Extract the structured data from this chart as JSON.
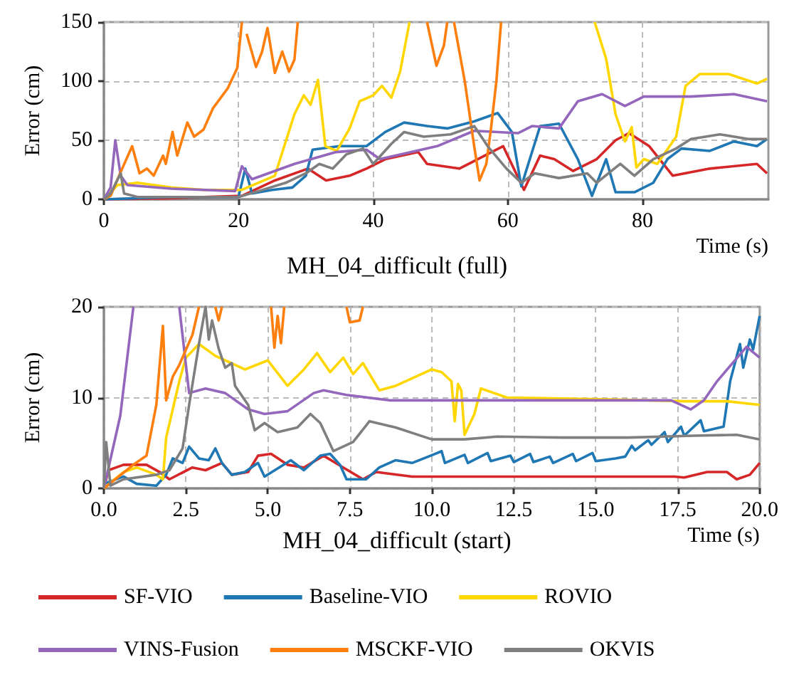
{
  "chart_data": [
    {
      "type": "line",
      "title": "MH_04_difficult (full)",
      "xlabel": "Time (s)",
      "ylabel": "Error (cm)",
      "xlim": [
        0,
        98.7
      ],
      "ylim": [
        0,
        150
      ],
      "xticks": [
        0,
        20,
        40,
        60,
        80
      ],
      "yticks": [
        0,
        50,
        100,
        150
      ],
      "grid": true,
      "legend": false,
      "marker": "none",
      "series": [
        {
          "color": "#d62728",
          "x": [
            0,
            10,
            20.5,
            25.4,
            30.3,
            33,
            36.5,
            39,
            41.8,
            46.7,
            48,
            52.8,
            59.3,
            62.4,
            64.8,
            66.9,
            69.7,
            73.2,
            76,
            78,
            81,
            84.5,
            90,
            97,
            98.5
          ],
          "values": [
            0,
            1,
            3,
            16,
            26,
            16,
            20,
            26,
            34,
            40,
            30,
            26,
            45,
            8,
            37,
            34,
            24,
            34,
            50,
            56,
            45,
            20,
            26,
            30,
            22
          ]
        },
        {
          "color": "#1f77b4",
          "x": [
            0,
            10,
            20,
            21,
            22,
            25,
            28,
            30,
            31,
            35,
            39,
            41.8,
            44.6,
            48,
            51,
            55,
            58.5,
            60.6,
            62,
            64.8,
            67.6,
            70.4,
            72.5,
            74.6,
            76,
            78.8,
            81.6,
            83.7,
            85.8,
            90,
            93.6,
            97,
            98.5
          ],
          "values": [
            0,
            2,
            2,
            26,
            5,
            8,
            10,
            20,
            42,
            45,
            45,
            57,
            65,
            62,
            60,
            66,
            73,
            57,
            11,
            62,
            64,
            34,
            3,
            34,
            6,
            6,
            14,
            34,
            43,
            41,
            49,
            45,
            51
          ]
        },
        {
          "color": "#ffd700",
          "x": [
            0,
            2,
            5,
            10,
            15,
            20.5,
            25.4,
            28.3,
            29.7,
            30.7,
            31.8,
            32.9,
            34.6,
            36.5,
            38,
            40,
            41.3,
            42.7,
            44,
            45.4,
            46,
            72.9,
            74.6,
            76,
            77.4,
            78.4,
            79.1,
            80.2,
            82.2,
            85,
            86.4,
            88.5,
            92.8,
            97,
            98.5
          ],
          "values": [
            0,
            12,
            14,
            10,
            8,
            8,
            20,
            72,
            88,
            80,
            101,
            45,
            41,
            60,
            83,
            88,
            96,
            86,
            108,
            150,
            null,
            150,
            119,
            72,
            49,
            61,
            27,
            34,
            30,
            53,
            96,
            106,
            106,
            98,
            102
          ]
        },
        {
          "color": "#9467bd",
          "x": [
            0,
            1,
            1.7,
            2.5,
            3.5,
            10,
            19.5,
            20.5,
            22,
            28.3,
            34.5,
            39,
            41,
            49.5,
            55,
            61.5,
            63.6,
            67.6,
            70.4,
            74,
            77.4,
            80.2,
            87.2,
            93.6,
            98.5
          ],
          "values": [
            0,
            10,
            50,
            20,
            12,
            9,
            7,
            28,
            17,
            30,
            40,
            42,
            34,
            45,
            58,
            56,
            62,
            60,
            83,
            89,
            79,
            87,
            87,
            89,
            83
          ]
        },
        {
          "color": "#ff7f0e",
          "x": [
            0,
            1,
            2.1,
            4.2,
            5.3,
            6.4,
            7.4,
            8.8,
            9.2,
            10.2,
            10.9,
            12.4,
            13.4,
            14.8,
            16.2,
            18.4,
            19.8,
            20.5,
            20.9,
            21.2,
            22.6,
            23.5,
            24.3,
            25.4,
            26.5,
            27.5,
            28.3,
            28.8,
            29,
            48,
            49.4,
            50.5,
            51,
            51.5,
            52,
            53.6,
            55,
            55.8,
            56.8,
            57.5,
            58.3,
            59
          ],
          "values": [
            0,
            3,
            18,
            45,
            22,
            26,
            20,
            37,
            30,
            57,
            37,
            65,
            53,
            59,
            77,
            94,
            111,
            150,
            null,
            140,
            112,
            125,
            145,
            107,
            125,
            108,
            118,
            150,
            null,
            150,
            113,
            130,
            150,
            null,
            150,
            100,
            45,
            16,
            30,
            60,
            100,
            150
          ]
        },
        {
          "color": "#7f7f7f",
          "x": [
            0,
            1,
            2.5,
            3,
            5,
            20,
            23,
            27,
            30,
            32,
            34,
            36,
            38.5,
            40,
            42.7,
            44.6,
            47.5,
            51.5,
            55,
            57,
            59.8,
            62,
            64,
            67.6,
            71.8,
            73.2,
            76.7,
            78.8,
            81.6,
            85,
            87.2,
            91.5,
            95.7,
            98.5
          ],
          "values": [
            0,
            5,
            22,
            5,
            2,
            2,
            7,
            14,
            22,
            30,
            26,
            38,
            43,
            30,
            47,
            57,
            53,
            55,
            62,
            45,
            26,
            14,
            22,
            18,
            22,
            14,
            30,
            20,
            34,
            43,
            51,
            55,
            51,
            51
          ]
        }
      ]
    },
    {
      "type": "line",
      "title": "MH_04_difficult (start)",
      "xlabel": "Time (s)",
      "ylabel": "Error (cm)",
      "xlim": [
        0,
        20
      ],
      "ylim": [
        0,
        20
      ],
      "xticks": [
        {
          "value": 0,
          "label": "0.0"
        },
        {
          "value": 2.5,
          "label": "2.5"
        },
        {
          "value": 5,
          "label": "5.0"
        },
        {
          "value": 7.5,
          "label": "7.5"
        },
        {
          "value": 10,
          "label": "10.0"
        },
        {
          "value": 12.5,
          "label": "12.5"
        },
        {
          "value": 15,
          "label": "15.0"
        },
        {
          "value": 17.5,
          "label": "17.5"
        },
        {
          "value": 20,
          "label": "20.0"
        }
      ],
      "yticks": [
        0,
        10,
        20
      ],
      "grid": true,
      "legend": "bottom",
      "marker": "none",
      "series": [
        {
          "name": "SF-VIO",
          "color": "#d62728",
          "x": [
            0,
            0.14,
            0.6,
            1.3,
            1.7,
            2,
            2.7,
            3.1,
            3.6,
            3.9,
            4.4,
            4.7,
            5.1,
            5.6,
            6.1,
            6.7,
            7.3,
            7.9,
            8.3,
            9.4,
            10.1,
            17.4,
            17.7,
            18.4,
            19,
            19.3,
            19.7,
            20
          ],
          "values": [
            0,
            2,
            2.6,
            2.6,
            1.8,
            1,
            2.3,
            2,
            2.8,
            1.5,
            1.8,
            3.6,
            3.8,
            2.6,
            2.3,
            3.6,
            2.3,
            1,
            1.8,
            1.3,
            1.3,
            1.3,
            1.2,
            1.8,
            1.8,
            1,
            1.5,
            2.8
          ]
        },
        {
          "name": "Baseline-VIO",
          "color": "#1f77b4",
          "x": [
            0,
            0.6,
            1,
            1.6,
            1.9,
            2.1,
            2.4,
            2.6,
            2.9,
            3.2,
            3.4,
            3.6,
            3.9,
            4.3,
            4.7,
            4.9,
            5.7,
            6.1,
            6.6,
            6.9,
            7.2,
            7.4,
            8,
            8.4,
            8.9,
            9.4,
            10.1,
            10.3,
            10.4,
            11,
            11.1,
            11.7,
            11.8,
            12.4,
            12.5,
            13,
            13.1,
            13.6,
            13.7,
            14.3,
            14.4,
            14.9,
            15,
            15.6,
            15.9,
            16.1,
            16.2,
            16.6,
            16.7,
            17.1,
            17.2,
            17.6,
            17.7,
            18.2,
            18.3,
            18.9,
            19.1,
            19.4,
            19.5,
            19.7,
            19.8,
            20
          ],
          "values": [
            0.5,
            1.3,
            0.5,
            0.3,
            1.5,
            3.3,
            2.8,
            4.6,
            3.3,
            3.1,
            4.4,
            2.8,
            1.5,
            1.8,
            2.8,
            1.3,
            3.1,
            2,
            3.6,
            3.8,
            2.6,
            1,
            1,
            2.3,
            3.1,
            2.8,
            3.8,
            4.1,
            2.8,
            3.7,
            2.8,
            3.9,
            3,
            3.6,
            2.9,
            3.8,
            2.9,
            3.5,
            2.8,
            3.8,
            3,
            3.9,
            3,
            3.3,
            3.5,
            4.7,
            4.2,
            5.3,
            4.8,
            6.2,
            5.1,
            6.8,
            5.8,
            7.5,
            6.3,
            6.8,
            11.8,
            15.9,
            13.3,
            16.4,
            15.3,
            19
          ]
        },
        {
          "name": "ROVIO",
          "color": "#ffd700",
          "x": [
            0,
            0.6,
            1,
            1.6,
            1.8,
            1.9,
            2.3,
            2.5,
            2.9,
            3.4,
            3.7,
            4.3,
            5,
            5.6,
            6.1,
            6.5,
            6.9,
            7.3,
            7.6,
            7.9,
            8.4,
            8.9,
            10,
            10.3,
            10.6,
            10.7,
            10.8,
            10.9,
            11,
            11.3,
            11.5,
            11.9,
            12.3,
            15.4,
            17.7,
            19,
            20
          ],
          "values": [
            0,
            1.8,
            2.3,
            1.5,
            1,
            5.6,
            11.8,
            14.4,
            15.9,
            14.6,
            14.1,
            13.1,
            14.1,
            11.3,
            13.1,
            14.9,
            12.8,
            14.4,
            12.6,
            13.8,
            10.8,
            11.3,
            13.1,
            12.8,
            11.8,
            7.4,
            11.5,
            10.8,
            5.9,
            8.2,
            11,
            10.5,
            10,
            9.8,
            9.6,
            9.6,
            9.2
          ]
        },
        {
          "name": "VINS-Fusion",
          "color": "#9467bd",
          "x": [
            0,
            0.5,
            0.9,
            1.5,
            2.3,
            2.6,
            3.1,
            3.7,
            4.4,
            4.9,
            5.6,
            6.4,
            6.7,
            7.4,
            8.7,
            10.1,
            17.3,
            17.9,
            18.3,
            18.7,
            19.6,
            20
          ],
          "values": [
            0,
            8,
            20,
            null,
            20,
            10.5,
            11,
            10.5,
            8.7,
            8.2,
            8.5,
            10.5,
            10.8,
            10.3,
            9.7,
            9.7,
            9.7,
            8.7,
            9.7,
            11.8,
            15.6,
            14.4
          ]
        },
        {
          "name": "MSCKF-VIO",
          "color": "#ff7f0e",
          "x": [
            0,
            0.9,
            1.3,
            1.6,
            1.8,
            1.9,
            2.1,
            2.3,
            2.7,
            2.9,
            3.2,
            3.4,
            3.5,
            3.6,
            4.3,
            5.1,
            5.2,
            5.3,
            5.4,
            5.5,
            6.5,
            7.4,
            7.5,
            7.8,
            7.9
          ],
          "values": [
            0,
            2.6,
            3.6,
            9.2,
            17.9,
            9.7,
            12.3,
            13.6,
            16.9,
            20,
            null,
            20,
            18.5,
            20,
            null,
            20,
            15.5,
            19,
            16,
            20,
            null,
            20,
            18.3,
            18.5,
            20
          ]
        },
        {
          "name": "OKVIS",
          "color": "#7f7f7f",
          "x": [
            0,
            0.07,
            0.2,
            0.6,
            1.6,
            2,
            2.4,
            2.6,
            2.9,
            3.1,
            3.2,
            3.3,
            3.5,
            3.7,
            3.9,
            4,
            4.4,
            4.6,
            4.9,
            5.3,
            5.9,
            6.3,
            6.6,
            7,
            7.6,
            8.1,
            8.9,
            10,
            11,
            12,
            14,
            16,
            18,
            19.3,
            20
          ],
          "values": [
            0,
            5.1,
            0.3,
            1,
            1.5,
            2,
            4.4,
            9.2,
            15.9,
            20,
            16.4,
            18.5,
            15.4,
            13.3,
            13.8,
            11.3,
            9.2,
            6.4,
            7.2,
            6.2,
            6.7,
            8.2,
            7.2,
            4.1,
            5.1,
            7.4,
            6.7,
            5.4,
            5.4,
            5.7,
            5.6,
            5.6,
            5.8,
            5.9,
            5.4
          ]
        }
      ]
    }
  ]
}
